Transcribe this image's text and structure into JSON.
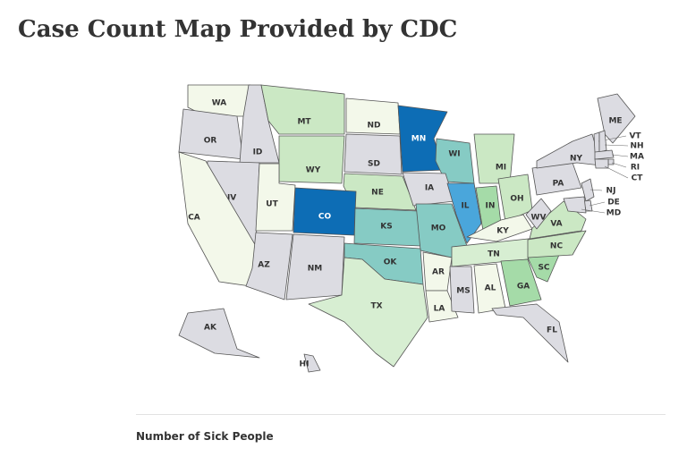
{
  "title": "Case Count Map Provided by CDC",
  "legend_title": "Number of Sick People",
  "states": [
    {
      "label": "WA",
      "fill": "#f3f8ea"
    },
    {
      "label": "OR",
      "fill": "#dcdce2"
    },
    {
      "label": "ID",
      "fill": "#dcdce2"
    },
    {
      "label": "MT",
      "fill": "#cbe8c4"
    },
    {
      "label": "WY",
      "fill": "#cbe8c4"
    },
    {
      "label": "ND",
      "fill": "#f3f8ea"
    },
    {
      "label": "SD",
      "fill": "#dcdce2"
    },
    {
      "label": "NE",
      "fill": "#cbe8c4"
    },
    {
      "label": "MN",
      "fill": "#0d6db5"
    },
    {
      "label": "WI",
      "fill": "#86cbc4"
    },
    {
      "label": "IA",
      "fill": "#dcdce2"
    },
    {
      "label": "IL",
      "fill": "#4aa6db"
    },
    {
      "label": "IN",
      "fill": "#a5dba8"
    },
    {
      "label": "MI",
      "fill": "#cbe8c4"
    },
    {
      "label": "OH",
      "fill": "#cbe8c4"
    },
    {
      "label": "PA",
      "fill": "#dcdce2"
    },
    {
      "label": "NY",
      "fill": "#dcdce2"
    },
    {
      "label": "ME",
      "fill": "#dcdce2"
    },
    {
      "label": "NV",
      "fill": "#dcdce2"
    },
    {
      "label": "CA",
      "fill": "#f3f8ea"
    },
    {
      "label": "UT",
      "fill": "#f3f8ea"
    },
    {
      "label": "CO",
      "fill": "#0d6db5"
    },
    {
      "label": "AZ",
      "fill": "#dcdce2"
    },
    {
      "label": "NM",
      "fill": "#dcdce2"
    },
    {
      "label": "KS",
      "fill": "#86cbc4"
    },
    {
      "label": "MO",
      "fill": "#86cbc4"
    },
    {
      "label": "OK",
      "fill": "#86cbc4"
    },
    {
      "label": "TX",
      "fill": "#d7eed2"
    },
    {
      "label": "AR",
      "fill": "#f3f8ea"
    },
    {
      "label": "LA",
      "fill": "#f3f8ea"
    },
    {
      "label": "MS",
      "fill": "#dcdce2"
    },
    {
      "label": "AL",
      "fill": "#f3f8ea"
    },
    {
      "label": "TN",
      "fill": "#d7eed2"
    },
    {
      "label": "KY",
      "fill": "#f3f8ea"
    },
    {
      "label": "GA",
      "fill": "#a5dba8"
    },
    {
      "label": "SC",
      "fill": "#a5dba8"
    },
    {
      "label": "NC",
      "fill": "#cbe8c4"
    },
    {
      "label": "VA",
      "fill": "#cbe8c4"
    },
    {
      "label": "WV",
      "fill": "#dcdce2"
    },
    {
      "label": "FL",
      "fill": "#dcdce2"
    },
    {
      "label": "AK",
      "fill": "#dcdce2"
    },
    {
      "label": "HI",
      "fill": "#dcdce2"
    },
    {
      "label": "VT",
      "fill": "#dcdce2"
    },
    {
      "label": "NH",
      "fill": "#dcdce2"
    },
    {
      "label": "MA",
      "fill": "#dcdce2"
    },
    {
      "label": "RI",
      "fill": "#dcdce2"
    },
    {
      "label": "CT",
      "fill": "#dcdce2"
    },
    {
      "label": "NJ",
      "fill": "#dcdce2"
    },
    {
      "label": "DE",
      "fill": "#dcdce2"
    },
    {
      "label": "MD",
      "fill": "#dcdce2"
    }
  ]
}
